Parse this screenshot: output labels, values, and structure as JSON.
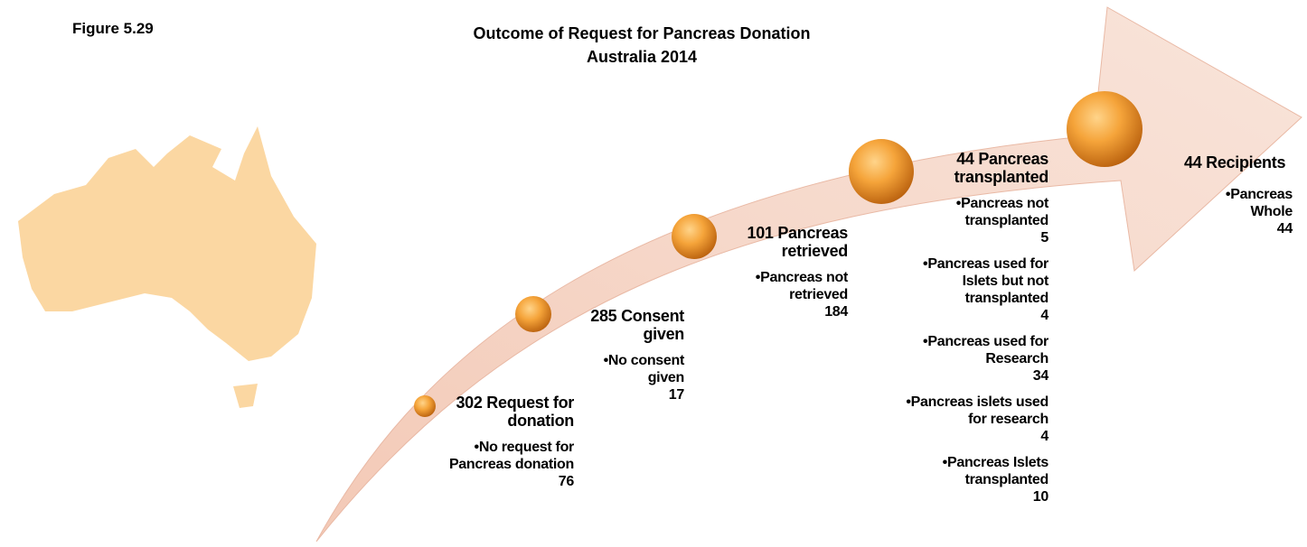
{
  "figure_label": "Figure 5.29",
  "title": "Outcome of Request for Pancreas Donation",
  "subtitle": "Australia 2014",
  "stages": [
    {
      "heading": "302 Request for donation",
      "bullets": [
        {
          "label": "No request for Pancreas donation",
          "value": "76"
        }
      ]
    },
    {
      "heading": "285 Consent given",
      "bullets": [
        {
          "label": "No consent given",
          "value": "17"
        }
      ]
    },
    {
      "heading": "101 Pancreas retrieved",
      "bullets": [
        {
          "label": "Pancreas not retrieved",
          "value": "184"
        }
      ]
    },
    {
      "heading": "44 Pancreas transplanted",
      "bullets": [
        {
          "label": "Pancreas not transplanted",
          "value": "5"
        },
        {
          "label": "Pancreas used for Islets but not transplanted",
          "value": "4"
        },
        {
          "label": "Pancreas used for Research",
          "value": "34"
        },
        {
          "label": "Pancreas islets used for research",
          "value": "4"
        },
        {
          "label": "Pancreas Islets transplanted",
          "value": "10"
        }
      ]
    },
    {
      "heading": "44 Recipients",
      "bullets": [
        {
          "label": "Pancreas Whole",
          "value": "44"
        }
      ]
    }
  ]
}
